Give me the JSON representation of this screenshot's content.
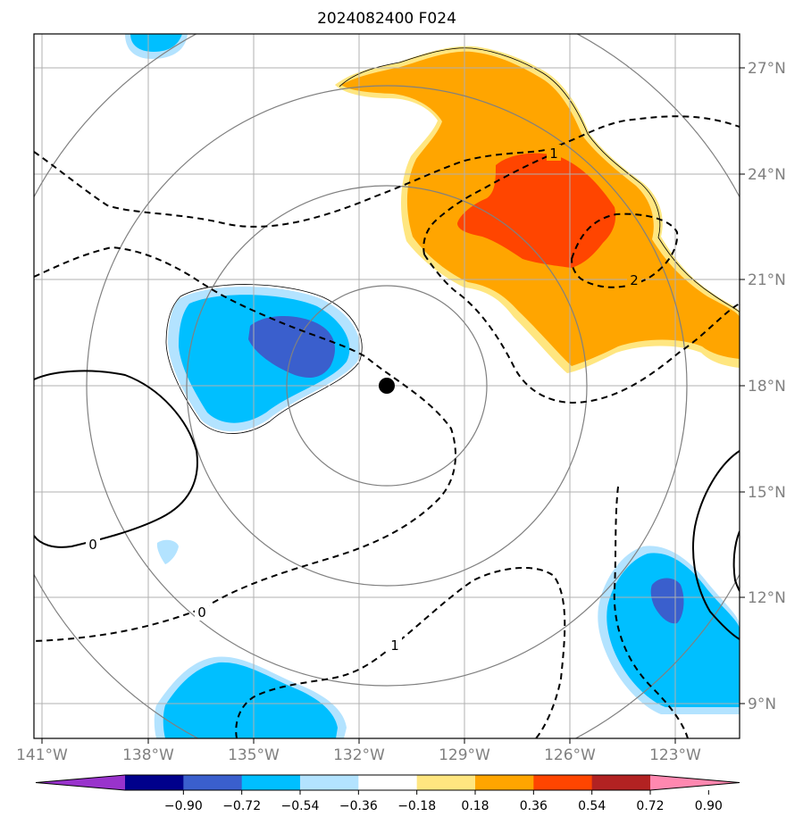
{
  "title": "2024082400 F024",
  "lat_labels": [
    "27°N",
    "24°N",
    "21°N",
    "18°N",
    "15°N",
    "12°N",
    "9°N"
  ],
  "lon_labels": [
    "141°W",
    "138°W",
    "135°W",
    "132°W",
    "129°W",
    "126°W",
    "123°W"
  ],
  "colorbar": {
    "ticks": [
      "−0.90",
      "−0.72",
      "−0.54",
      "−0.36",
      "−0.18",
      "0.18",
      "0.36",
      "0.54",
      "0.72",
      "0.90"
    ],
    "colors": [
      "#9933cc",
      "#00008b",
      "#3a5fcd",
      "#00bfff",
      "#b3e3ff",
      "#ffffff",
      "#ffe680",
      "#ffa500",
      "#ff4500",
      "#b22222",
      "#ff88b0"
    ]
  },
  "contour_labels": [
    "1",
    "2",
    "0",
    "0",
    "1"
  ],
  "center_marker": {
    "lat": 18.0,
    "lon": -131.3
  },
  "colors": {
    "grid": "#b0b0b0",
    "range_ring": "#808080",
    "positive_strong": "#ff4500",
    "positive_mid": "#ffa500",
    "positive_weak": "#ffe680",
    "negative_strong": "#3a5fcd",
    "negative_mid": "#00bfff",
    "negative_weak": "#b3e3ff"
  }
}
